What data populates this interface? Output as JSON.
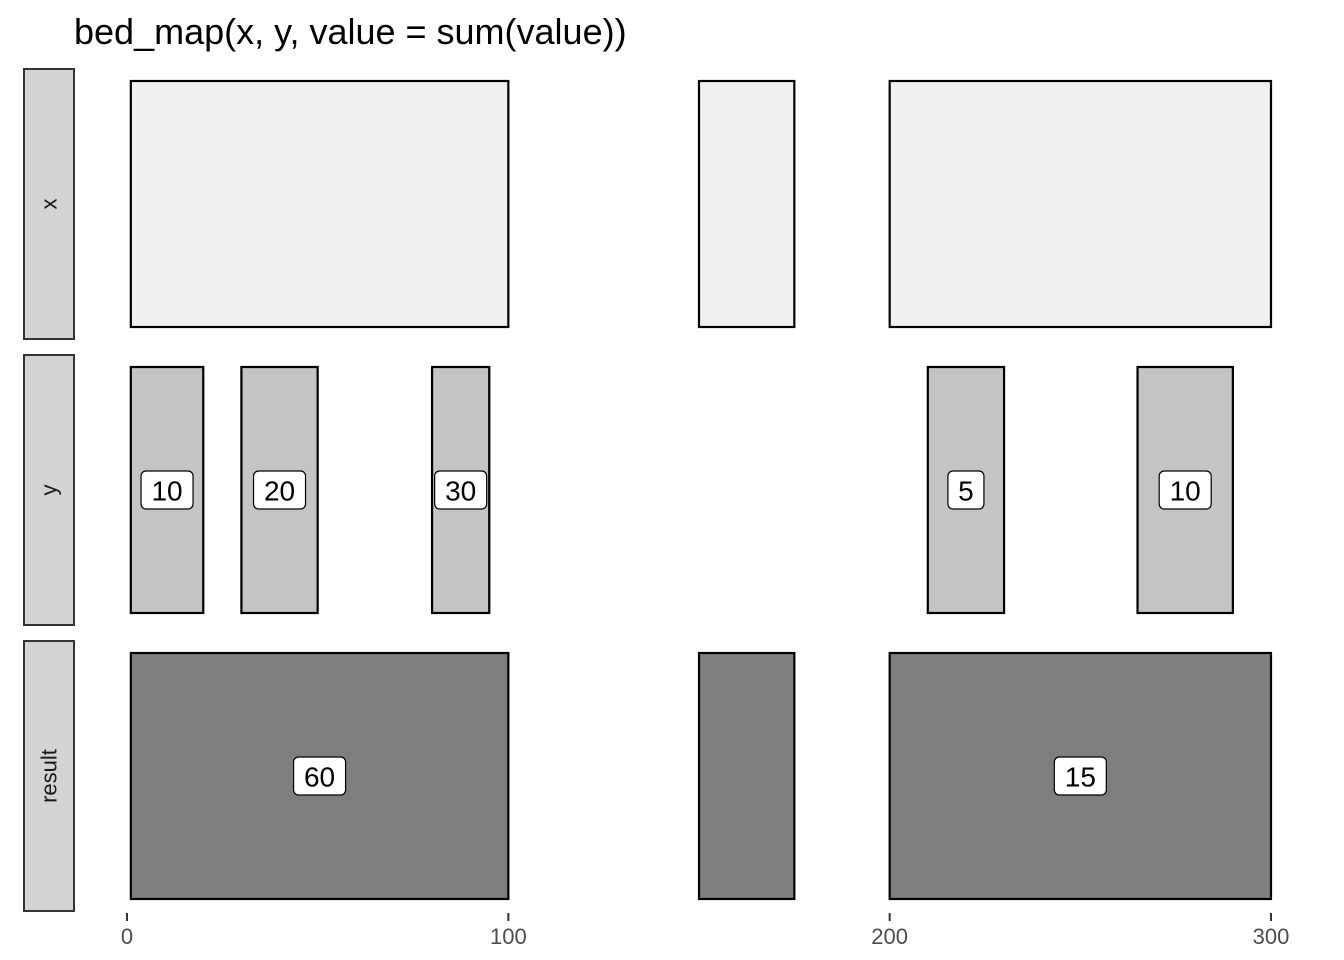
{
  "chart_data": {
    "type": "bar",
    "subtype": "genomic-interval-facets",
    "title": "bed_map(x, y, value = sum(value))",
    "xlabel": "",
    "ylabel": "",
    "xlim": [
      0,
      300
    ],
    "x_ticks": [
      0,
      100,
      200,
      300
    ],
    "x_tick_labels": [
      "0",
      "100",
      "200",
      "300"
    ],
    "grid": false,
    "legend": "none",
    "facets": [
      {
        "name": "x",
        "fill": "#f0f0f0",
        "intervals": [
          {
            "start": 1,
            "end": 100
          },
          {
            "start": 150,
            "end": 175
          },
          {
            "start": 200,
            "end": 300
          }
        ]
      },
      {
        "name": "y",
        "fill": "#c4c4c4",
        "intervals": [
          {
            "start": 1,
            "end": 20,
            "label": "10"
          },
          {
            "start": 30,
            "end": 50,
            "label": "20"
          },
          {
            "start": 80,
            "end": 95,
            "label": "30"
          },
          {
            "start": 210,
            "end": 230,
            "label": "5"
          },
          {
            "start": 265,
            "end": 290,
            "label": "10"
          }
        ]
      },
      {
        "name": "result",
        "fill": "#7f7f7f",
        "intervals": [
          {
            "start": 1,
            "end": 100,
            "label": "60"
          },
          {
            "start": 150,
            "end": 175
          },
          {
            "start": 200,
            "end": 300,
            "label": "15"
          }
        ]
      }
    ]
  },
  "colors": {
    "strip_fill": "#d3d3d3",
    "strip_border": "#333333",
    "outline": "#000000",
    "label_box_fill": "#ffffff",
    "axis_line": "#333333"
  }
}
